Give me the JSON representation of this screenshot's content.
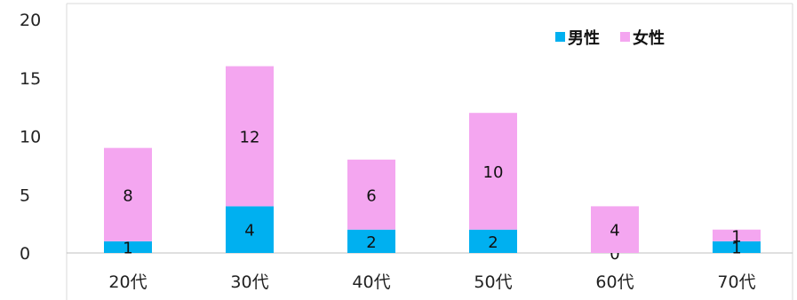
{
  "chart_data": {
    "type": "bar",
    "stacked": true,
    "categories": [
      "20代",
      "30代",
      "40代",
      "50代",
      "60代",
      "70代"
    ],
    "series": [
      {
        "name": "男性",
        "values": [
          1,
          4,
          2,
          2,
          0,
          1
        ],
        "color": "#00B0F0"
      },
      {
        "name": "女性",
        "values": [
          8,
          12,
          6,
          10,
          4,
          1
        ],
        "color": "#F4A6F0"
      }
    ],
    "ylim": [
      0,
      20
    ],
    "yticks": [
      "0",
      "5",
      "10",
      "15",
      "20"
    ],
    "grid": false,
    "legend": "top-right",
    "title": "",
    "xlabel": "",
    "ylabel": ""
  }
}
